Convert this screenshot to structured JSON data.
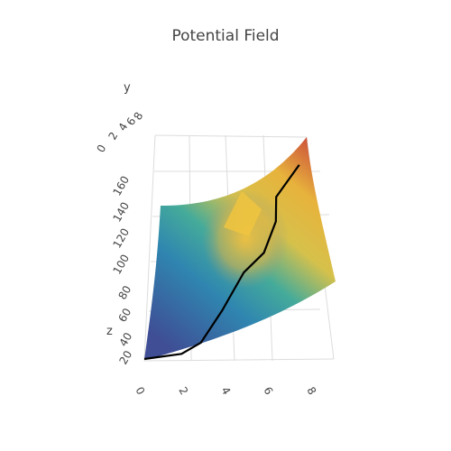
{
  "chart_data": {
    "type": "surface",
    "title": "Potential Field",
    "axes": {
      "x": {
        "label": "",
        "ticks": [
          "0",
          "2",
          "4",
          "6",
          "8"
        ],
        "range": [
          0,
          9
        ]
      },
      "y": {
        "label": "y",
        "ticks": [
          "0",
          "2",
          "4",
          "6",
          "8"
        ],
        "range": [
          0,
          9
        ]
      },
      "z": {
        "label": "z",
        "ticks": [
          "20",
          "40",
          "60",
          "80",
          "100",
          "120",
          "140",
          "160"
        ],
        "range": [
          10,
          175
        ]
      }
    },
    "grid": true,
    "colorscale": [
      "#3f4e95",
      "#2f86b0",
      "#45ab9a",
      "#d6c14b",
      "#e7b33c",
      "#c9453a"
    ],
    "surface": {
      "description_values": "z rises from about 18 at x=0 to about 165 at x=9, with a bump near x=5",
      "corner_values": {
        "x0": 18,
        "x9": 165
      }
    },
    "path": {
      "name": "",
      "color": "#000000",
      "points": [
        {
          "x": 0.0,
          "z": 20
        },
        {
          "x": 2.0,
          "z": 22
        },
        {
          "x": 3.0,
          "z": 30
        },
        {
          "x": 4.0,
          "z": 55
        },
        {
          "x": 5.0,
          "z": 85
        },
        {
          "x": 6.0,
          "z": 100
        },
        {
          "x": 6.5,
          "z": 125
        },
        {
          "x": 6.4,
          "z": 145
        },
        {
          "x": 7.5,
          "z": 170
        }
      ]
    }
  }
}
